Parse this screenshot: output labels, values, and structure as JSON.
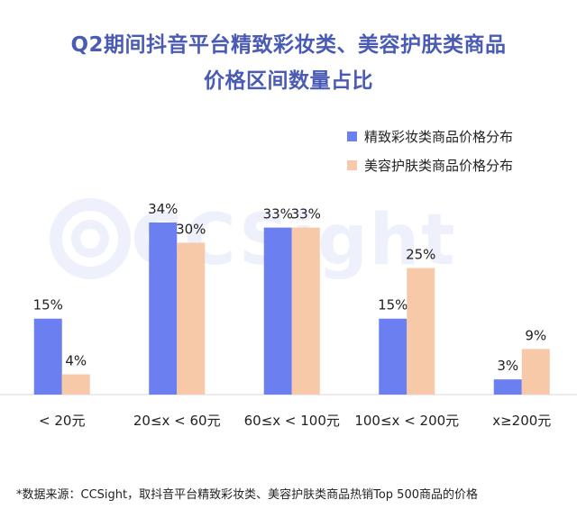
{
  "title_line1": "Q2期间抖音平台精致彩妆类、美容护肤类商品",
  "title_line2": "价格区间数量占比",
  "watermark": "CCSight",
  "footnote": "*数据来源：CCSight，取抖音平台精致彩妆类、美容护肤类商品热销Top 500商品的价格",
  "colors": {
    "title": "#4a5bb5",
    "series1": "#6b7ff0",
    "series2": "#f7c9a8"
  },
  "chart_data": {
    "type": "bar",
    "categories": [
      "< 20元",
      "20≤x < 60元",
      "60≤x < 100元",
      "100≤x < 200元",
      "x≥200元"
    ],
    "series": [
      {
        "name": "精致彩妆类商品价格分布",
        "values": [
          15,
          34,
          33,
          15,
          3
        ],
        "labels": [
          "15%",
          "34%",
          "33%",
          "15%",
          "3%"
        ]
      },
      {
        "name": "美容护肤类商品价格分布",
        "values": [
          4,
          30,
          33,
          25,
          9
        ],
        "labels": [
          "4%",
          "30%",
          "33%",
          "25%",
          "9%"
        ]
      }
    ],
    "ylim": [
      0,
      40
    ],
    "legend_position": "top-right",
    "grid": false
  }
}
